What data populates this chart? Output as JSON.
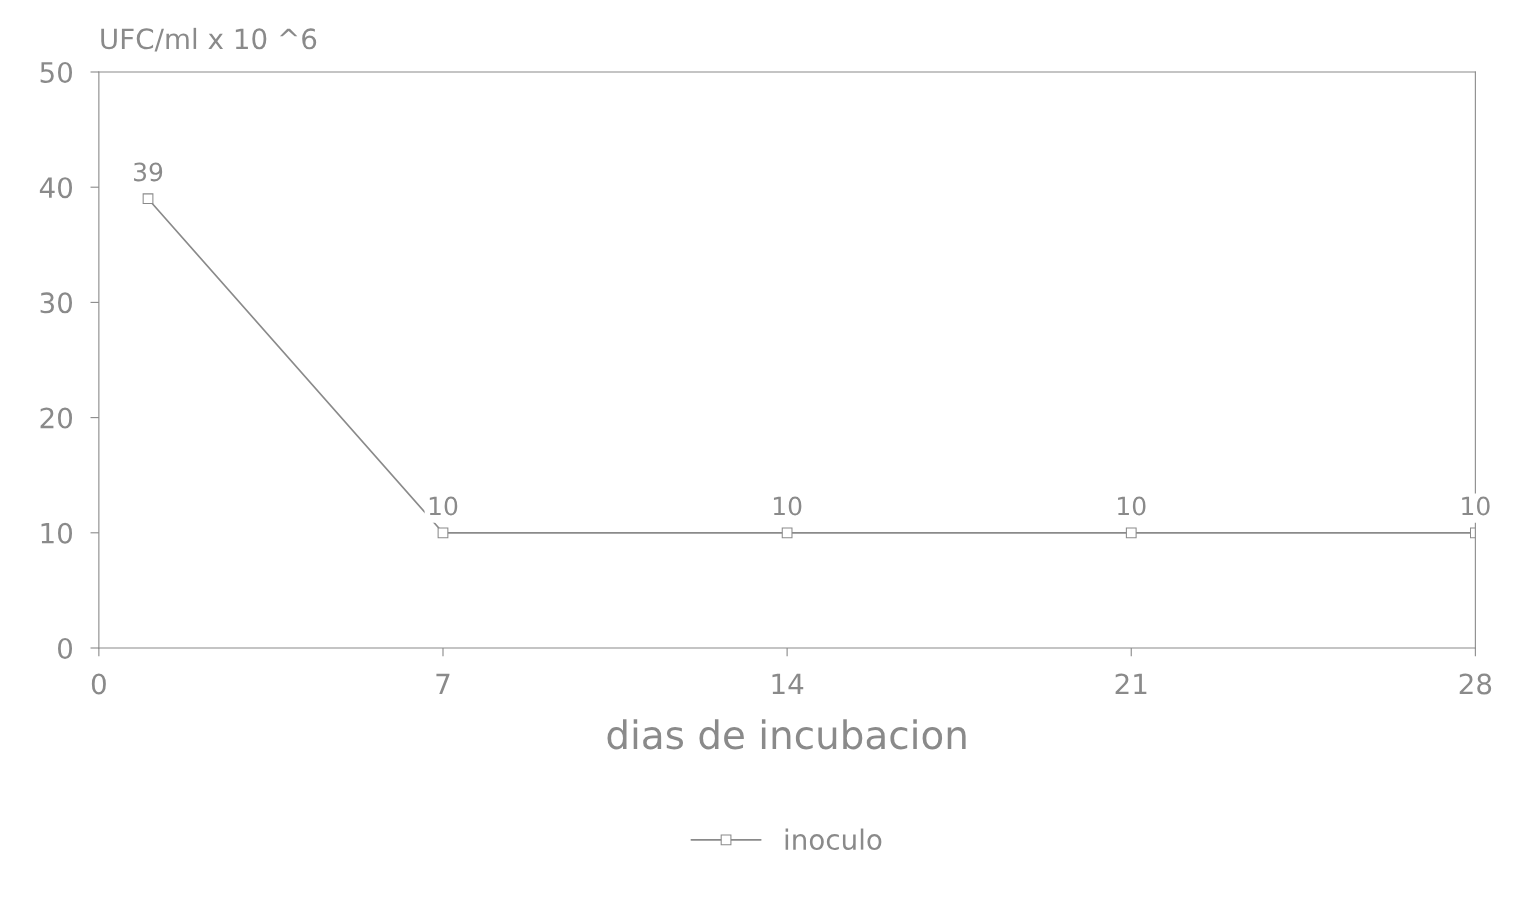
{
  "chart_data": {
    "type": "line",
    "ylabel": "UFC/ml x 10 ^6",
    "xlabel": "dias de incubacion",
    "x": [
      1,
      7,
      14,
      21,
      28
    ],
    "series": [
      {
        "name": "inoculo",
        "color": "#8a8a8a",
        "values": [
          39,
          10,
          10,
          10,
          10
        ]
      }
    ],
    "xlim": [
      0,
      28
    ],
    "xticks": [
      0,
      7,
      14,
      21,
      28
    ],
    "ylim": [
      0,
      50
    ],
    "yticks": [
      0,
      10,
      20,
      30,
      40,
      50
    ],
    "data_labels": true,
    "marker": "square",
    "line_style": "solid",
    "legend": "bottom",
    "grid": false
  }
}
